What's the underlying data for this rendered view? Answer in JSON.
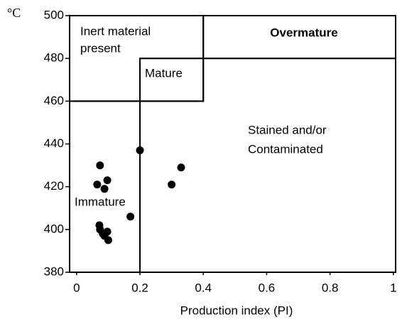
{
  "chart_data": {
    "type": "scatter",
    "y_label": "°C",
    "x_label": "Production index (PI)",
    "xlim": [
      -0.022,
      1.007
    ],
    "ylim": [
      380,
      500
    ],
    "xticks": [
      0,
      0.2,
      0.4,
      0.6,
      0.8,
      1
    ],
    "yticks": [
      380,
      400,
      420,
      440,
      460,
      480,
      500
    ],
    "color": "#000000",
    "x": [
      0.074,
      0.065,
      0.088,
      0.097,
      0.2,
      0.3,
      0.33,
      0.17,
      0.072,
      0.074,
      0.083,
      0.097,
      0.1,
      0.088
    ],
    "values": [
      430,
      421,
      419,
      423,
      437,
      421,
      429,
      406,
      402,
      400,
      398,
      399,
      395,
      397
    ],
    "regions": [
      {
        "label": [
          "Inert material",
          "present"
        ],
        "xlim": [
          -0.022,
          0.4
        ],
        "ylim": [
          460,
          500
        ]
      },
      {
        "label": [
          "Overmature"
        ],
        "xlim": [
          0.4,
          1.007
        ],
        "ylim": [
          480,
          500
        ]
      },
      {
        "label": [
          "Mature"
        ],
        "xlim": [
          0.2,
          0.4
        ],
        "ylim": [
          460,
          480
        ]
      },
      {
        "label": [
          "Stained and/or",
          "Contaminated"
        ],
        "xlim": [
          0.2,
          1.007
        ],
        "ylim": [
          380,
          480
        ]
      },
      {
        "label": [
          "Immature"
        ],
        "xlim": [
          -0.022,
          0.2
        ],
        "ylim": [
          380,
          460
        ]
      }
    ]
  }
}
